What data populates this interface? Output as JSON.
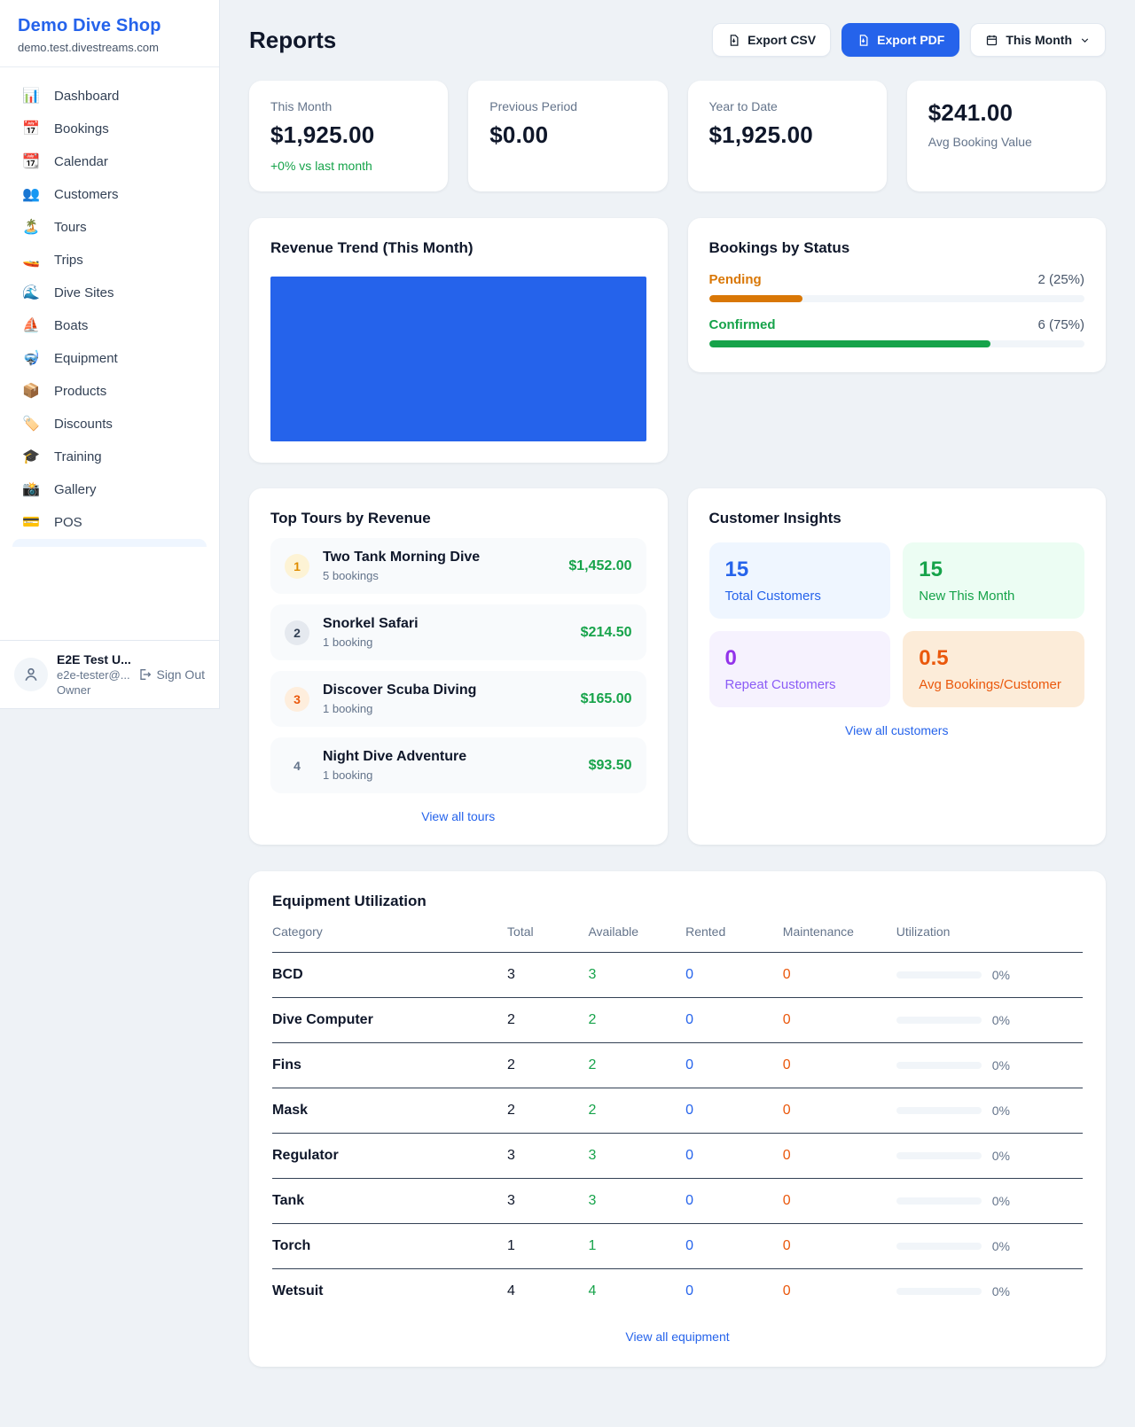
{
  "colors": {
    "accent": "#2563eb",
    "green": "#16a34a",
    "orange": "#d97706",
    "deep_orange": "#ea580c",
    "purple": "#9333ea",
    "background": "#eef2f6"
  },
  "sidebar": {
    "brand": "Demo Dive Shop",
    "domain": "demo.test.divestreams.com",
    "items": [
      {
        "icon": "📊",
        "label": "Dashboard"
      },
      {
        "icon": "📅",
        "label": "Bookings"
      },
      {
        "icon": "📆",
        "label": "Calendar"
      },
      {
        "icon": "👥",
        "label": "Customers"
      },
      {
        "icon": "🏝️",
        "label": "Tours"
      },
      {
        "icon": "🚤",
        "label": "Trips"
      },
      {
        "icon": "🌊",
        "label": "Dive Sites"
      },
      {
        "icon": "⛵",
        "label": "Boats"
      },
      {
        "icon": "🤿",
        "label": "Equipment"
      },
      {
        "icon": "📦",
        "label": "Products"
      },
      {
        "icon": "🏷️",
        "label": "Discounts"
      },
      {
        "icon": "🎓",
        "label": "Training"
      },
      {
        "icon": "📸",
        "label": "Gallery"
      },
      {
        "icon": "💳",
        "label": "POS"
      }
    ],
    "user": {
      "name": "E2E Test U...",
      "email": "e2e-tester@...",
      "role": "Owner",
      "sign_out": "Sign Out"
    }
  },
  "header": {
    "title": "Reports",
    "export_csv": "Export CSV",
    "export_pdf": "Export PDF",
    "period": "This Month"
  },
  "stats": {
    "this_month": {
      "label": "This Month",
      "value": "$1,925.00",
      "delta": "+0% vs last month"
    },
    "previous": {
      "label": "Previous Period",
      "value": "$0.00"
    },
    "ytd": {
      "label": "Year to Date",
      "value": "$1,925.00"
    },
    "avg": {
      "value": "$241.00",
      "label": "Avg Booking Value"
    }
  },
  "revenue_trend": {
    "title": "Revenue Trend (This Month)",
    "fill_color": "#2563eb"
  },
  "bookings_status": {
    "title": "Bookings by Status",
    "rows": [
      {
        "label": "Pending",
        "value": "2 (25%)",
        "percent": 25
      },
      {
        "label": "Confirmed",
        "value": "6 (75%)",
        "percent": 75
      }
    ]
  },
  "top_tours": {
    "title": "Top Tours by Revenue",
    "rows": [
      {
        "rank": "1",
        "name": "Two Tank Morning Dive",
        "bookings": "5 bookings",
        "revenue": "$1,452.00"
      },
      {
        "rank": "2",
        "name": "Snorkel Safari",
        "bookings": "1 booking",
        "revenue": "$214.50"
      },
      {
        "rank": "3",
        "name": "Discover Scuba Diving",
        "bookings": "1 booking",
        "revenue": "$165.00"
      },
      {
        "rank": "4",
        "name": "Night Dive Adventure",
        "bookings": "1 booking",
        "revenue": "$93.50"
      }
    ],
    "view_all": "View all tours"
  },
  "customer_insights": {
    "title": "Customer Insights",
    "tiles": [
      {
        "value": "15",
        "label": "Total Customers"
      },
      {
        "value": "15",
        "label": "New This Month"
      },
      {
        "value": "0",
        "label": "Repeat Customers"
      },
      {
        "value": "0.5",
        "label": "Avg Bookings/Customer"
      }
    ],
    "view_all": "View all customers"
  },
  "equipment": {
    "title": "Equipment Utilization",
    "columns": [
      "Category",
      "Total",
      "Available",
      "Rented",
      "Maintenance",
      "Utilization"
    ],
    "rows": [
      {
        "category": "BCD",
        "total": "3",
        "available": "3",
        "rented": "0",
        "maintenance": "0",
        "utilization": 0,
        "utilization_label": "0%"
      },
      {
        "category": "Dive Computer",
        "total": "2",
        "available": "2",
        "rented": "0",
        "maintenance": "0",
        "utilization": 0,
        "utilization_label": "0%"
      },
      {
        "category": "Fins",
        "total": "2",
        "available": "2",
        "rented": "0",
        "maintenance": "0",
        "utilization": 0,
        "utilization_label": "0%"
      },
      {
        "category": "Mask",
        "total": "2",
        "available": "2",
        "rented": "0",
        "maintenance": "0",
        "utilization": 0,
        "utilization_label": "0%"
      },
      {
        "category": "Regulator",
        "total": "3",
        "available": "3",
        "rented": "0",
        "maintenance": "0",
        "utilization": 0,
        "utilization_label": "0%"
      },
      {
        "category": "Tank",
        "total": "3",
        "available": "3",
        "rented": "0",
        "maintenance": "0",
        "utilization": 0,
        "utilization_label": "0%"
      },
      {
        "category": "Torch",
        "total": "1",
        "available": "1",
        "rented": "0",
        "maintenance": "0",
        "utilization": 0,
        "utilization_label": "0%"
      },
      {
        "category": "Wetsuit",
        "total": "4",
        "available": "4",
        "rented": "0",
        "maintenance": "0",
        "utilization": 0,
        "utilization_label": "0%"
      }
    ],
    "view_all": "View all equipment"
  }
}
